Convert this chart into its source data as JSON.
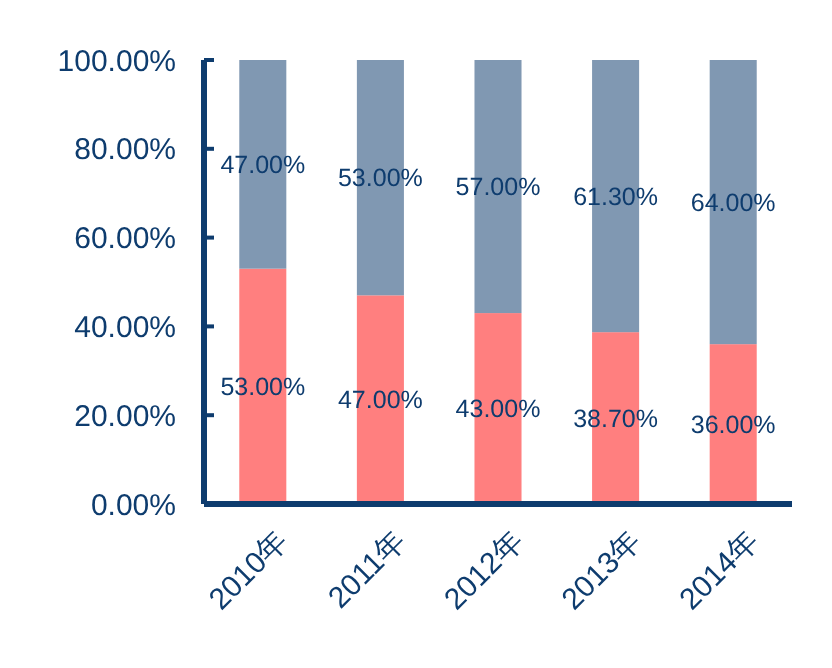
{
  "chart_data": {
    "type": "bar",
    "stacked": true,
    "categories": [
      "2010年",
      "2011年",
      "2012年",
      "2013年",
      "2014年"
    ],
    "series": [
      {
        "color": "#ff7f7f",
        "values": [
          53,
          47,
          43,
          38.7,
          36
        ],
        "value_labels": [
          "53.00%",
          "47.00%",
          "43.00%",
          "38.70%",
          "36.00%"
        ]
      },
      {
        "color": "#8098b2",
        "values": [
          47,
          53,
          57,
          61.3,
          64
        ],
        "value_labels": [
          "47.00%",
          "53.00%",
          "57.00%",
          "61.30%",
          "64.00%"
        ]
      }
    ],
    "ylim": [
      0,
      100
    ],
    "yticks": [
      {
        "value": 0,
        "label": "0.00%"
      },
      {
        "value": 20,
        "label": "20.00%"
      },
      {
        "value": 40,
        "label": "40.00%"
      },
      {
        "value": 60,
        "label": "60.00%"
      },
      {
        "value": 80,
        "label": "80.00%"
      },
      {
        "value": 100,
        "label": "100.00%"
      }
    ],
    "grid": false
  }
}
